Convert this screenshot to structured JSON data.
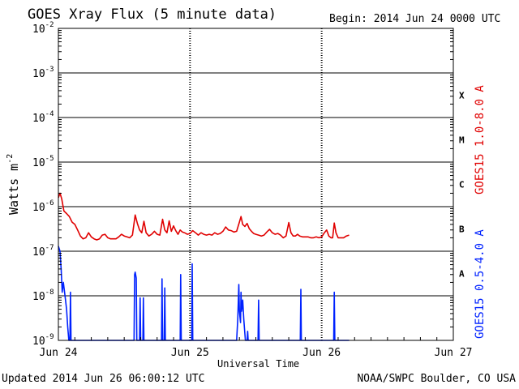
{
  "header": {
    "title": "GOES Xray Flux (5 minute data)",
    "begin_label": "Begin:  2014 Jun 24 0000 UTC"
  },
  "footer": {
    "updated": "Updated 2014 Jun 26 06:00:12 UTC",
    "credit": "NOAA/SWPC Boulder, CO USA"
  },
  "chart_data": {
    "type": "line",
    "title": "GOES Xray Flux (5 minute data)",
    "xlabel": "Universal Time",
    "ylabel": "Watts m",
    "ylabel_exponent": "-2",
    "yscale": "log",
    "ylim": [
      1e-09,
      0.01
    ],
    "xlim": [
      0,
      72
    ],
    "x_unit": "hours since 2014 Jun 24 0000 UTC",
    "x_ticks": [
      {
        "x": 0,
        "label": "Jun 24"
      },
      {
        "x": 24,
        "label": "Jun 25"
      },
      {
        "x": 48,
        "label": "Jun 26"
      },
      {
        "x": 72,
        "label": "Jun 27"
      }
    ],
    "y_ticks": [
      {
        "exp": -9,
        "label": "10",
        "sup": "-9"
      },
      {
        "exp": -8,
        "label": "10",
        "sup": "-8"
      },
      {
        "exp": -7,
        "label": "10",
        "sup": "-7"
      },
      {
        "exp": -6,
        "label": "10",
        "sup": "-6"
      },
      {
        "exp": -5,
        "label": "10",
        "sup": "-5"
      },
      {
        "exp": -4,
        "label": "10",
        "sup": "-4"
      },
      {
        "exp": -3,
        "label": "10",
        "sup": "-3"
      },
      {
        "exp": -2,
        "label": "10",
        "sup": "-2"
      }
    ],
    "flare_classes": [
      {
        "label": "A",
        "exp": -8
      },
      {
        "label": "B",
        "exp": -7
      },
      {
        "label": "C",
        "exp": -6
      },
      {
        "label": "M",
        "exp": -5
      },
      {
        "label": "X",
        "exp": -4
      }
    ],
    "grid": "horizontal lines at each decade; dashed vertical lines at day boundaries",
    "series": [
      {
        "name": "GOES15 1.0-8.0 A",
        "color": "#e00000",
        "points": [
          [
            0.0,
            1.6e-06
          ],
          [
            0.3,
            2e-06
          ],
          [
            0.6,
            1.5e-06
          ],
          [
            1.0,
            8e-07
          ],
          [
            1.5,
            7e-07
          ],
          [
            2.0,
            6e-07
          ],
          [
            2.5,
            4.5e-07
          ],
          [
            3.0,
            4e-07
          ],
          [
            3.5,
            3e-07
          ],
          [
            4.0,
            2.2e-07
          ],
          [
            4.5,
            1.9e-07
          ],
          [
            5.0,
            2e-07
          ],
          [
            5.5,
            2.6e-07
          ],
          [
            6.0,
            2.1e-07
          ],
          [
            6.5,
            1.9e-07
          ],
          [
            7.0,
            1.8e-07
          ],
          [
            7.5,
            1.9e-07
          ],
          [
            8.0,
            2.3e-07
          ],
          [
            8.5,
            2.4e-07
          ],
          [
            9.0,
            2e-07
          ],
          [
            9.5,
            1.9e-07
          ],
          [
            10.0,
            1.9e-07
          ],
          [
            10.5,
            1.9e-07
          ],
          [
            11.0,
            2.1e-07
          ],
          [
            11.5,
            2.4e-07
          ],
          [
            12.0,
            2.2e-07
          ],
          [
            12.5,
            2.1e-07
          ],
          [
            13.0,
            2e-07
          ],
          [
            13.5,
            2.3e-07
          ],
          [
            14.0,
            6.5e-07
          ],
          [
            14.4,
            4.2e-07
          ],
          [
            14.8,
            3e-07
          ],
          [
            15.2,
            2.6e-07
          ],
          [
            15.6,
            4.7e-07
          ],
          [
            16.0,
            2.6e-07
          ],
          [
            16.5,
            2.2e-07
          ],
          [
            17.0,
            2.4e-07
          ],
          [
            17.5,
            2.8e-07
          ],
          [
            18.0,
            2.4e-07
          ],
          [
            18.5,
            2.3e-07
          ],
          [
            19.0,
            5.2e-07
          ],
          [
            19.4,
            3e-07
          ],
          [
            19.8,
            2.6e-07
          ],
          [
            20.2,
            4.8e-07
          ],
          [
            20.6,
            2.8e-07
          ],
          [
            21.0,
            3.7e-07
          ],
          [
            21.4,
            2.9e-07
          ],
          [
            21.8,
            2.4e-07
          ],
          [
            22.2,
            3e-07
          ],
          [
            22.6,
            2.7e-07
          ],
          [
            23.0,
            2.6e-07
          ],
          [
            23.5,
            2.4e-07
          ],
          [
            24.0,
            2.5e-07
          ],
          [
            24.5,
            2.9e-07
          ],
          [
            25.0,
            2.6e-07
          ],
          [
            25.5,
            2.3e-07
          ],
          [
            26.0,
            2.6e-07
          ],
          [
            26.5,
            2.4e-07
          ],
          [
            27.0,
            2.3e-07
          ],
          [
            27.5,
            2.4e-07
          ],
          [
            28.0,
            2.3e-07
          ],
          [
            28.5,
            2.6e-07
          ],
          [
            29.0,
            2.4e-07
          ],
          [
            29.5,
            2.5e-07
          ],
          [
            30.0,
            2.8e-07
          ],
          [
            30.5,
            3.5e-07
          ],
          [
            31.0,
            3e-07
          ],
          [
            31.5,
            2.9e-07
          ],
          [
            32.0,
            2.7e-07
          ],
          [
            32.5,
            2.8e-07
          ],
          [
            33.0,
            4.5e-07
          ],
          [
            33.3,
            6e-07
          ],
          [
            33.6,
            4e-07
          ],
          [
            34.0,
            3.6e-07
          ],
          [
            34.4,
            4.2e-07
          ],
          [
            34.8,
            3.2e-07
          ],
          [
            35.2,
            2.8e-07
          ],
          [
            35.6,
            2.5e-07
          ],
          [
            36.0,
            2.4e-07
          ],
          [
            36.5,
            2.3e-07
          ],
          [
            37.0,
            2.2e-07
          ],
          [
            37.5,
            2.3e-07
          ],
          [
            38.0,
            2.7e-07
          ],
          [
            38.5,
            3.1e-07
          ],
          [
            39.0,
            2.6e-07
          ],
          [
            39.5,
            2.4e-07
          ],
          [
            40.0,
            2.5e-07
          ],
          [
            40.5,
            2.3e-07
          ],
          [
            41.0,
            2e-07
          ],
          [
            41.5,
            2.2e-07
          ],
          [
            42.0,
            4.4e-07
          ],
          [
            42.4,
            2.6e-07
          ],
          [
            42.8,
            2.2e-07
          ],
          [
            43.2,
            2.2e-07
          ],
          [
            43.6,
            2.4e-07
          ],
          [
            44.0,
            2.2e-07
          ],
          [
            44.5,
            2.1e-07
          ],
          [
            45.0,
            2.1e-07
          ],
          [
            45.5,
            2.1e-07
          ],
          [
            46.0,
            2e-07
          ],
          [
            46.5,
            2e-07
          ],
          [
            47.0,
            2.1e-07
          ],
          [
            47.5,
            2e-07
          ],
          [
            48.0,
            2.1e-07
          ],
          [
            48.5,
            2.6e-07
          ],
          [
            48.9,
            3e-07
          ],
          [
            49.3,
            2.2e-07
          ],
          [
            49.7,
            2e-07
          ],
          [
            50.0,
            2e-07
          ],
          [
            50.3,
            4.3e-07
          ],
          [
            50.6,
            2.6e-07
          ],
          [
            51.0,
            2e-07
          ],
          [
            51.5,
            2e-07
          ],
          [
            52.0,
            2e-07
          ],
          [
            52.5,
            2.2e-07
          ],
          [
            53.0,
            2.3e-07
          ]
        ]
      },
      {
        "name": "GOES15 0.5-4.0 A",
        "color": "#0022ff",
        "points": [
          [
            0.0,
            1.3e-07
          ],
          [
            0.3,
            1e-07
          ],
          [
            0.5,
            4e-08
          ],
          [
            0.7,
            1.2e-08
          ],
          [
            0.9,
            2e-08
          ],
          [
            1.1,
            1.3e-08
          ],
          [
            1.3,
            8e-09
          ],
          [
            1.5,
            5e-09
          ],
          [
            1.7,
            2e-09
          ],
          [
            1.9,
            1e-09
          ],
          [
            2.1,
            1e-09
          ],
          [
            2.2,
            1.2e-08
          ],
          [
            2.3,
            1e-09
          ],
          [
            3.0,
            1e-09
          ],
          [
            5.0,
            1e-09
          ],
          [
            8.0,
            1e-09
          ],
          [
            11.0,
            1e-09
          ],
          [
            13.8,
            1e-09
          ],
          [
            13.9,
            3e-08
          ],
          [
            14.0,
            3.4e-08
          ],
          [
            14.2,
            2.5e-08
          ],
          [
            14.3,
            1e-09
          ],
          [
            14.8,
            1e-09
          ],
          [
            14.9,
            9e-09
          ],
          [
            15.0,
            1e-09
          ],
          [
            15.4,
            1e-09
          ],
          [
            15.5,
            9e-09
          ],
          [
            15.6,
            1e-09
          ],
          [
            18.8,
            1e-09
          ],
          [
            18.9,
            2.4e-08
          ],
          [
            19.0,
            1e-09
          ],
          [
            19.3,
            1e-09
          ],
          [
            19.4,
            1.5e-08
          ],
          [
            19.5,
            1e-09
          ],
          [
            22.2,
            1e-09
          ],
          [
            22.3,
            3e-08
          ],
          [
            22.4,
            1e-09
          ],
          [
            24.3,
            1e-09
          ],
          [
            24.4,
            5.2e-08
          ],
          [
            24.5,
            1e-09
          ],
          [
            30.0,
            1e-09
          ],
          [
            32.5,
            1e-09
          ],
          [
            32.7,
            3e-09
          ],
          [
            32.9,
            1.8e-08
          ],
          [
            33.0,
            4.5e-09
          ],
          [
            33.2,
            2.5e-09
          ],
          [
            33.3,
            1.2e-08
          ],
          [
            33.4,
            4.5e-09
          ],
          [
            33.6,
            8e-09
          ],
          [
            33.8,
            3e-09
          ],
          [
            34.1,
            1e-09
          ],
          [
            34.4,
            1e-09
          ],
          [
            34.5,
            1.6e-09
          ],
          [
            34.6,
            1e-09
          ],
          [
            36.4,
            1e-09
          ],
          [
            36.5,
            8e-09
          ],
          [
            36.6,
            1e-09
          ],
          [
            44.1,
            1e-09
          ],
          [
            44.2,
            1.4e-08
          ],
          [
            44.3,
            1e-09
          ],
          [
            48.5,
            1e-09
          ],
          [
            50.2,
            1e-09
          ],
          [
            50.3,
            1.2e-08
          ],
          [
            50.4,
            1e-09
          ],
          [
            53.0,
            1e-09
          ]
        ]
      }
    ]
  }
}
